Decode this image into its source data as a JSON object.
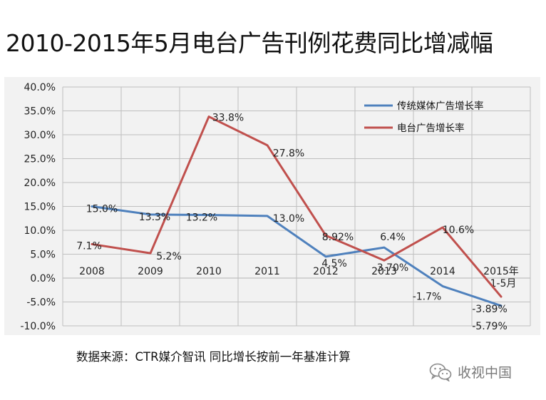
{
  "title": "2010-2015年5月电台广告刊例花费同比增减幅",
  "source_note": "数据来源：CTR媒介智讯   同比增长按前一年基准计算",
  "watermark": {
    "icon": "wechat-icon",
    "text": "收视中国"
  },
  "colors": {
    "series_blue": "#4f81bd",
    "series_red": "#c0504d",
    "panel_bg": "#f2f2f2",
    "grid": "#bfbfbf"
  },
  "chart_data": {
    "type": "line",
    "title": "2010-2015年5月电台广告刊例花费同比增减幅",
    "xlabel": "",
    "ylabel": "",
    "categories": [
      "2008",
      "2009",
      "2010",
      "2011",
      "2012",
      "2013",
      "2014",
      "2015年\n1-5月"
    ],
    "ylim": [
      -10,
      40
    ],
    "y_ticks": [
      40,
      35,
      30,
      25,
      20,
      15,
      10,
      5,
      0,
      -5,
      -10
    ],
    "y_tick_labels": [
      "40.0%",
      "35.0%",
      "30.0%",
      "25.0%",
      "20.0%",
      "15.0%",
      "10.0%",
      "5.0%",
      "0.0%",
      "-5.0%",
      "-10.0%"
    ],
    "grid": true,
    "legend_position": "top-right",
    "series": [
      {
        "name": "传统媒体广告增长率",
        "color": "#4f81bd",
        "values": [
          15.0,
          13.3,
          13.2,
          13.0,
          4.5,
          6.4,
          -1.7,
          -5.79
        ],
        "labels": [
          "15.0%",
          "13.3%",
          "13.2%",
          "13.0%",
          "4.5%",
          "6.4%",
          "-1.7%",
          "-5.79%"
        ]
      },
      {
        "name": "电台广告增长率",
        "color": "#c0504d",
        "values": [
          7.1,
          5.2,
          33.8,
          27.8,
          8.92,
          3.7,
          10.6,
          -3.89
        ],
        "labels": [
          "7.1%",
          "5.2%",
          "33.8%",
          "27.8%",
          "8.92%",
          "3.70%",
          "10.6%",
          "-3.89%"
        ]
      }
    ]
  }
}
